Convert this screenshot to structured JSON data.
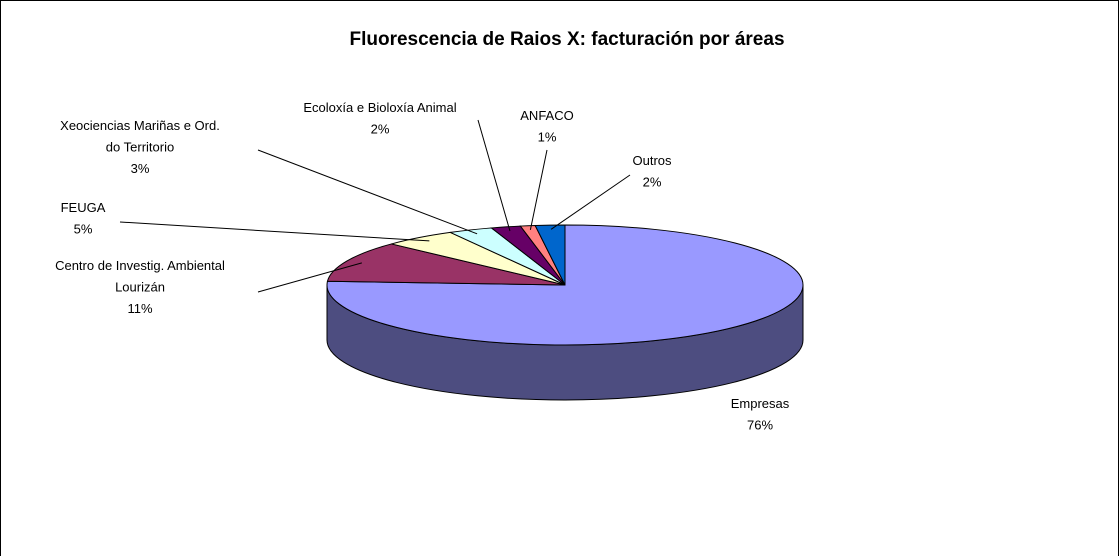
{
  "chart_data": {
    "type": "pie3d",
    "title": "Fluorescencia de Raios X: facturación por áreas",
    "categories": [
      "Empresas",
      "Centro de Investig. Ambiental Lourizán",
      "FEUGA",
      "Xeociencias Mariñas e Ord. do Territorio",
      "Ecoloxía e Bioloxía Animal",
      "ANFACO",
      "Outros"
    ],
    "values": [
      76,
      11,
      5,
      3,
      2,
      1,
      2
    ],
    "value_labels": [
      "76%",
      "11%",
      "5%",
      "3%",
      "2%",
      "1%",
      "2%"
    ],
    "colors": [
      "#9999ff",
      "#993366",
      "#ffffcc",
      "#ccffff",
      "#660066",
      "#ff8080",
      "#0066cc"
    ]
  }
}
